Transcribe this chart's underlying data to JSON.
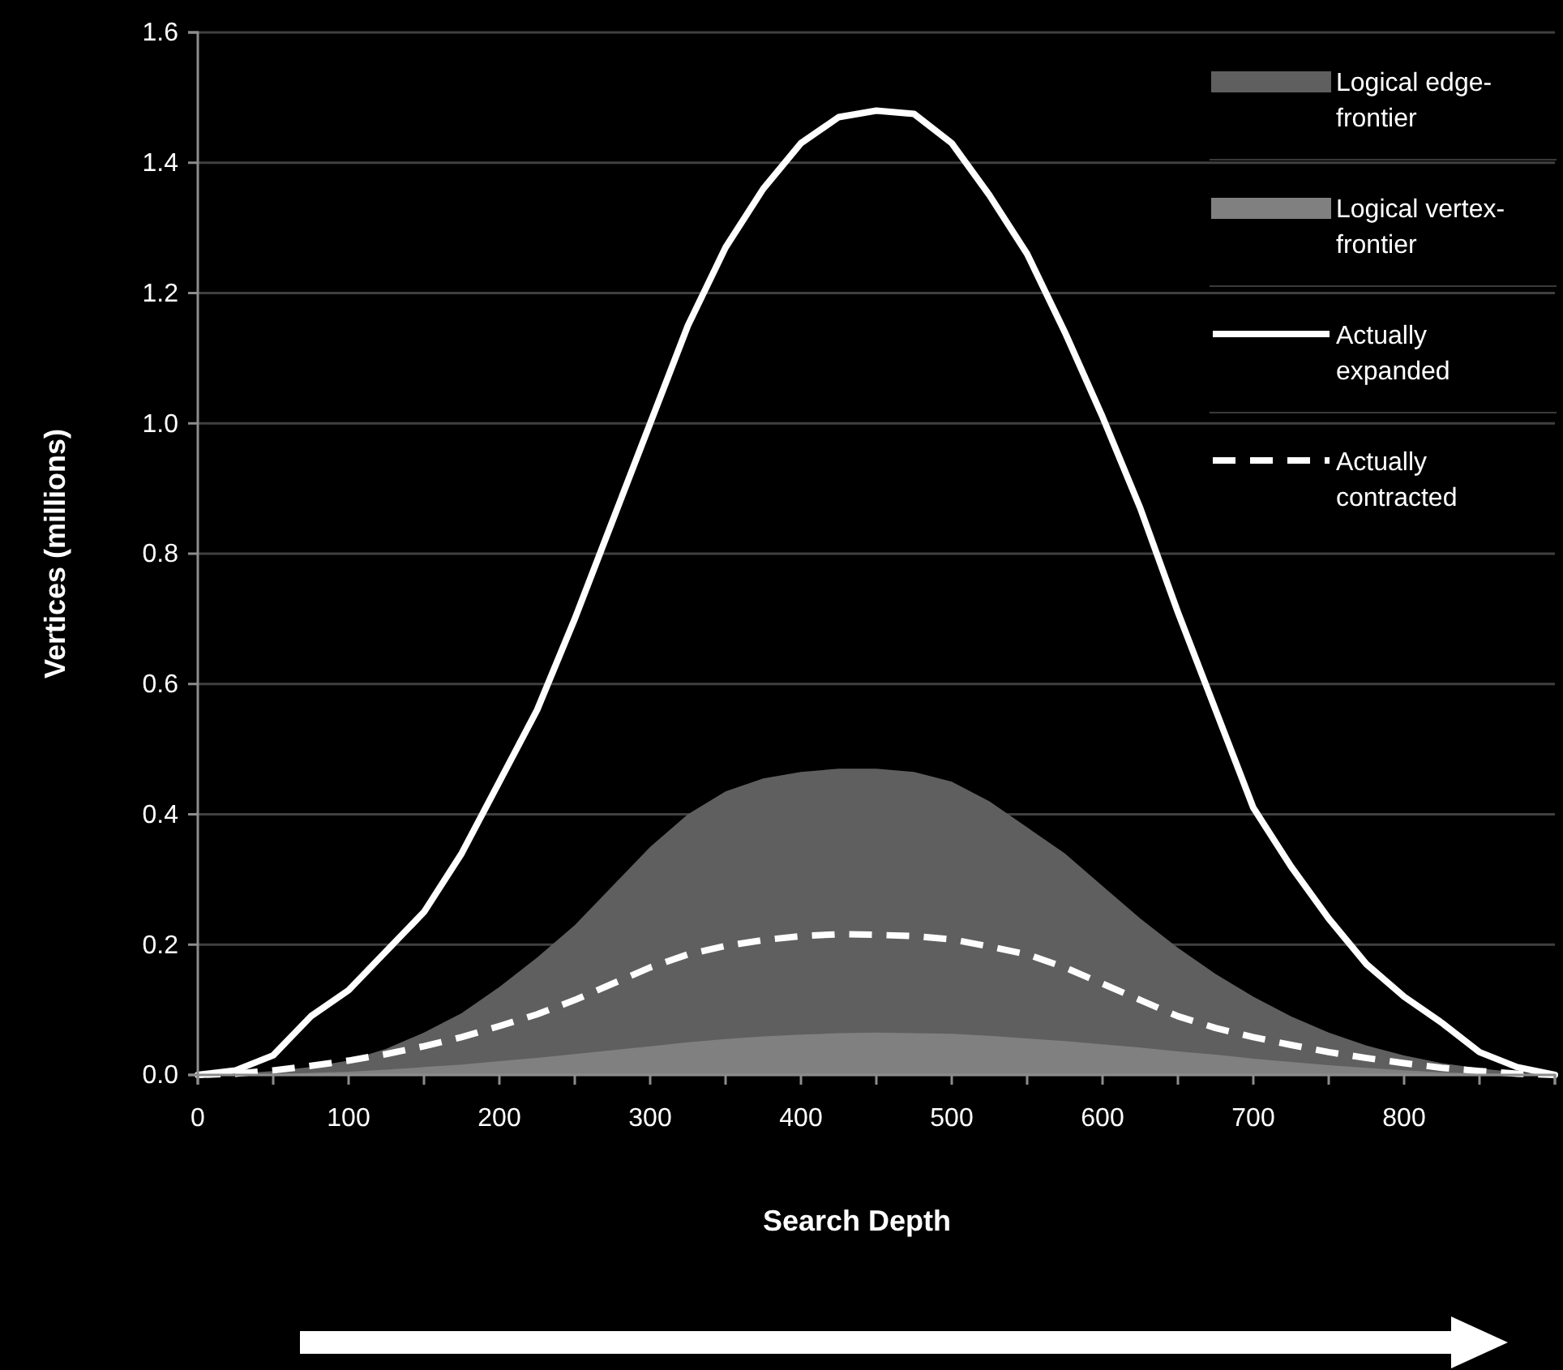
{
  "chart_data": {
    "type": "area",
    "xlabel": "Search Depth",
    "ylabel": "Vertices (millions)",
    "x": [
      0,
      25,
      50,
      75,
      100,
      125,
      150,
      175,
      200,
      225,
      250,
      275,
      300,
      325,
      350,
      375,
      400,
      425,
      450,
      475,
      500,
      525,
      550,
      575,
      600,
      625,
      650,
      675,
      700,
      725,
      750,
      775,
      800,
      825,
      850,
      875,
      900
    ],
    "series": [
      {
        "name": "Logical edge-frontier",
        "color": "#5f5f5f",
        "values": [
          0,
          0.002,
          0.006,
          0.012,
          0.022,
          0.04,
          0.065,
          0.095,
          0.135,
          0.18,
          0.23,
          0.29,
          0.35,
          0.4,
          0.435,
          0.455,
          0.465,
          0.47,
          0.47,
          0.465,
          0.45,
          0.42,
          0.38,
          0.34,
          0.29,
          0.24,
          0.195,
          0.155,
          0.12,
          0.09,
          0.065,
          0.045,
          0.03,
          0.018,
          0.01,
          0.004,
          0
        ]
      },
      {
        "name": "Logical vertex-frontier",
        "color": "#808080",
        "values": [
          0,
          0,
          0.001,
          0.003,
          0.005,
          0.008,
          0.012,
          0.016,
          0.021,
          0.026,
          0.032,
          0.038,
          0.044,
          0.05,
          0.055,
          0.059,
          0.062,
          0.064,
          0.065,
          0.064,
          0.063,
          0.06,
          0.056,
          0.052,
          0.047,
          0.042,
          0.036,
          0.031,
          0.025,
          0.02,
          0.015,
          0.011,
          0.007,
          0.004,
          0.002,
          0.001,
          0
        ]
      },
      {
        "name": "Actually expanded",
        "type": "line",
        "color": "#ffffff",
        "line_style": "solid",
        "values": [
          0,
          0.007,
          0.03,
          0.09,
          0.13,
          0.19,
          0.25,
          0.34,
          0.45,
          0.56,
          0.7,
          0.85,
          1.0,
          1.15,
          1.27,
          1.36,
          1.43,
          1.47,
          1.48,
          1.475,
          1.43,
          1.35,
          1.26,
          1.14,
          1.01,
          0.87,
          0.71,
          0.56,
          0.41,
          0.32,
          0.24,
          0.17,
          0.12,
          0.08,
          0.035,
          0.012,
          0
        ]
      },
      {
        "name": "Actually contracted",
        "type": "line",
        "color": "#ffffff",
        "line_style": "dashed",
        "values": [
          0,
          0.002,
          0.007,
          0.014,
          0.022,
          0.032,
          0.044,
          0.058,
          0.075,
          0.093,
          0.115,
          0.14,
          0.165,
          0.185,
          0.198,
          0.207,
          0.213,
          0.216,
          0.215,
          0.213,
          0.208,
          0.197,
          0.185,
          0.165,
          0.14,
          0.115,
          0.09,
          0.072,
          0.058,
          0.046,
          0.035,
          0.026,
          0.018,
          0.011,
          0.006,
          0.002,
          0
        ]
      }
    ],
    "xlim": [
      0,
      900
    ],
    "xticks": [
      0,
      {
        "value": 50,
        "label": null
      },
      100,
      {
        "value": 150,
        "label": null
      },
      200,
      {
        "value": 250,
        "label": null
      },
      300,
      {
        "value": 350,
        "label": null
      },
      400,
      {
        "value": 450,
        "label": null
      },
      500,
      {
        "value": 550,
        "label": null
      },
      600,
      {
        "value": 650,
        "label": null
      },
      700,
      {
        "value": 750,
        "label": null
      },
      800,
      {
        "value": 850,
        "label": null
      },
      {
        "value": 900,
        "label": null
      }
    ],
    "ylim": [
      0,
      1.6
    ],
    "yticks": [
      {
        "value": 0,
        "label": "0.0"
      },
      {
        "value": 0.2,
        "label": "0.2"
      },
      {
        "value": 0.4,
        "label": "0.4"
      },
      {
        "value": 0.6,
        "label": "0.6"
      },
      {
        "value": 0.8,
        "label": "0.8"
      },
      {
        "value": 1,
        "label": "1.0"
      },
      {
        "value": 1.2,
        "label": "1.2"
      },
      {
        "value": 1.4,
        "label": "1.4"
      },
      {
        "value": 1.6,
        "label": "1.6"
      }
    ],
    "grid": "y",
    "legend": "top right"
  }
}
